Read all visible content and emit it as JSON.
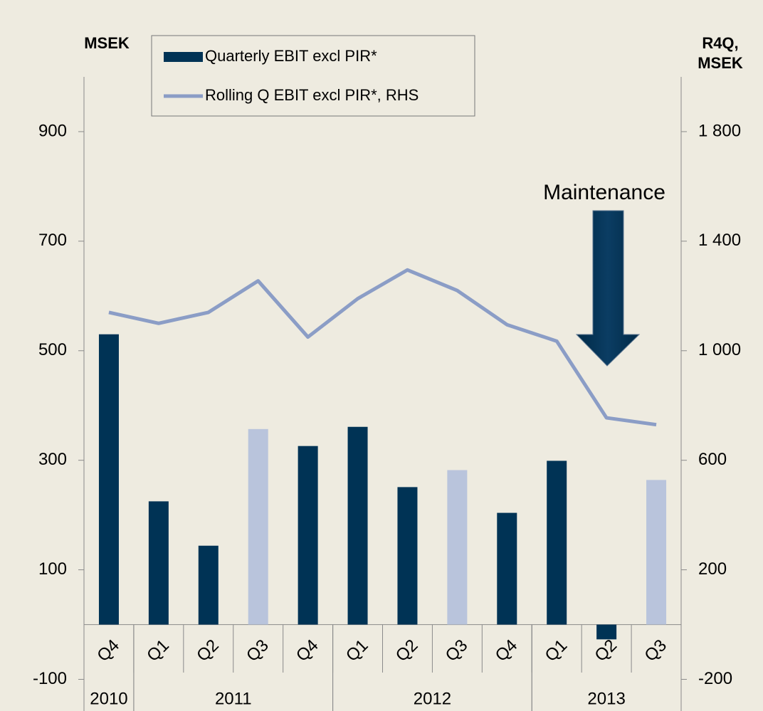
{
  "chart_data": {
    "type": "bar-line",
    "ylabel": "MSEK",
    "y2label": [
      "R4Q,",
      "MSEK"
    ],
    "categories": [
      "Q4",
      "Q1",
      "Q2",
      "Q3",
      "Q4",
      "Q1",
      "Q2",
      "Q3",
      "Q4",
      "Q1",
      "Q2",
      "Q3"
    ],
    "groups": [
      {
        "label": "2010",
        "count": 1
      },
      {
        "label": "2011",
        "count": 4
      },
      {
        "label": "2012",
        "count": 4
      },
      {
        "label": "2013",
        "count": 3
      }
    ],
    "series": [
      {
        "name": "Quarterly EBIT excl PIR*",
        "type": "bar",
        "color": "#003355",
        "colors": [
          "#003355",
          "#003355",
          "#003355",
          "#b9c4dc",
          "#003355",
          "#003355",
          "#003355",
          "#b9c4dc",
          "#003355",
          "#003355",
          "#003355",
          "#b9c4dc"
        ],
        "values": [
          530,
          225,
          144,
          357,
          326,
          361,
          251,
          282,
          204,
          299,
          -27,
          264
        ]
      },
      {
        "name": "Rolling Q EBIT excl PIR*, RHS",
        "type": "line",
        "axis": "y2",
        "color": "#8b9dc6",
        "values": [
          1140,
          1100,
          1140,
          1255,
          1050,
          1190,
          1295,
          1220,
          1095,
          1035,
          755,
          730
        ]
      }
    ],
    "ylim": [
      -150,
      1000
    ],
    "yticks": [
      -100,
      100,
      300,
      500,
      700,
      900
    ],
    "y2lim": [
      -300,
      2000
    ],
    "y2ticks": [
      -200,
      200,
      600,
      {
        "value": 1000,
        "label": "1 000"
      },
      {
        "value": 1400,
        "label": "1 400"
      },
      {
        "value": 1800,
        "label": "1 800"
      }
    ],
    "annotation": "Maintenance"
  }
}
